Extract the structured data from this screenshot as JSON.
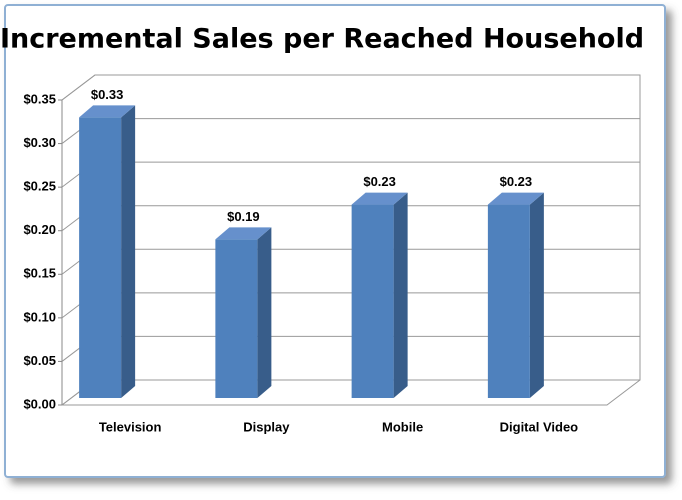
{
  "chart_data": {
    "type": "bar3d",
    "title": "Incremental Sales per Reached Household",
    "categories": [
      "Television",
      "Display",
      "Mobile",
      "Digital Video"
    ],
    "values": [
      0.33,
      0.19,
      0.23,
      0.23
    ],
    "value_labels": [
      "$0.33",
      "$0.19",
      "$0.23",
      "$0.23"
    ],
    "color": "#4f81bd",
    "ylim": [
      0,
      0.35
    ],
    "yticks": [
      {
        "value": 0,
        "label": "$0.00"
      },
      {
        "value": 0.05,
        "label": "$0.05"
      },
      {
        "value": 0.1,
        "label": "$0.10"
      },
      {
        "value": 0.15,
        "label": "$0.15"
      },
      {
        "value": 0.2,
        "label": "$0.20"
      },
      {
        "value": 0.25,
        "label": "$0.25"
      },
      {
        "value": 0.3,
        "label": "$0.30"
      },
      {
        "value": 0.35,
        "label": "$0.35"
      }
    ],
    "grid": true
  }
}
